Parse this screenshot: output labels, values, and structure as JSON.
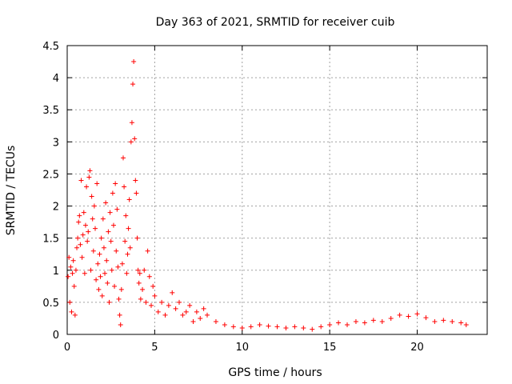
{
  "chart_data": {
    "type": "scatter",
    "title": "Day 363 of 2021, SRMTID for receiver cuib",
    "xlabel": "GPS time / hours",
    "ylabel": "SRMTID / TECUs",
    "xlim": [
      0,
      24
    ],
    "ylim": [
      0,
      4.5
    ],
    "xticks": [
      0,
      5,
      10,
      15,
      20
    ],
    "xtick_labels": [
      "0",
      "5",
      "10",
      "15",
      "20"
    ],
    "yticks": [
      0,
      0.5,
      1,
      1.5,
      2,
      2.5,
      3,
      3.5,
      4,
      4.5
    ],
    "ytick_labels": [
      "0",
      "0.5",
      "1",
      "1.5",
      "2",
      "2.5",
      "3",
      "3.5",
      "4",
      "4.5"
    ],
    "grid": true,
    "marker": "+",
    "color": "#ff0000",
    "series": [
      {
        "name": "SRMTID",
        "points": [
          [
            0.05,
            0.9
          ],
          [
            0.1,
            1.2
          ],
          [
            0.15,
            0.5
          ],
          [
            0.2,
            1.05
          ],
          [
            0.25,
            0.35
          ],
          [
            0.3,
            0.95
          ],
          [
            0.35,
            1.15
          ],
          [
            0.4,
            0.75
          ],
          [
            0.45,
            0.3
          ],
          [
            0.5,
            1.0
          ],
          [
            0.55,
            1.35
          ],
          [
            0.6,
            1.5
          ],
          [
            0.65,
            1.75
          ],
          [
            0.7,
            1.85
          ],
          [
            0.75,
            1.4
          ],
          [
            0.8,
            2.4
          ],
          [
            0.85,
            1.2
          ],
          [
            0.9,
            1.55
          ],
          [
            0.95,
            1.9
          ],
          [
            1.0,
            0.95
          ],
          [
            1.05,
            1.7
          ],
          [
            1.1,
            2.3
          ],
          [
            1.15,
            1.45
          ],
          [
            1.2,
            1.6
          ],
          [
            1.25,
            2.45
          ],
          [
            1.3,
            2.55
          ],
          [
            1.35,
            1.0
          ],
          [
            1.4,
            2.15
          ],
          [
            1.45,
            1.8
          ],
          [
            1.5,
            1.3
          ],
          [
            1.55,
            2.0
          ],
          [
            1.6,
            1.65
          ],
          [
            1.65,
            0.85
          ],
          [
            1.7,
            2.35
          ],
          [
            1.75,
            1.1
          ],
          [
            1.8,
            0.7
          ],
          [
            1.85,
            1.25
          ],
          [
            1.9,
            0.9
          ],
          [
            1.95,
            1.5
          ],
          [
            2.0,
            0.6
          ],
          [
            2.05,
            1.8
          ],
          [
            2.1,
            1.35
          ],
          [
            2.15,
            0.95
          ],
          [
            2.2,
            2.05
          ],
          [
            2.25,
            1.15
          ],
          [
            2.3,
            0.8
          ],
          [
            2.35,
            1.6
          ],
          [
            2.4,
            0.5
          ],
          [
            2.45,
            1.9
          ],
          [
            2.5,
            1.45
          ],
          [
            2.55,
            1.0
          ],
          [
            2.6,
            2.2
          ],
          [
            2.65,
            1.7
          ],
          [
            2.7,
            0.75
          ],
          [
            2.75,
            2.35
          ],
          [
            2.8,
            1.3
          ],
          [
            2.85,
            1.95
          ],
          [
            2.9,
            1.05
          ],
          [
            2.95,
            0.55
          ],
          [
            3.0,
            0.3
          ],
          [
            3.05,
            0.15
          ],
          [
            3.1,
            0.7
          ],
          [
            3.15,
            1.1
          ],
          [
            3.2,
            2.75
          ],
          [
            3.25,
            2.3
          ],
          [
            3.3,
            1.45
          ],
          [
            3.35,
            1.85
          ],
          [
            3.4,
            0.95
          ],
          [
            3.45,
            1.25
          ],
          [
            3.5,
            1.65
          ],
          [
            3.55,
            2.1
          ],
          [
            3.6,
            1.35
          ],
          [
            3.65,
            3.0
          ],
          [
            3.7,
            3.3
          ],
          [
            3.75,
            3.9
          ],
          [
            3.8,
            4.25
          ],
          [
            3.85,
            3.05
          ],
          [
            3.9,
            2.4
          ],
          [
            3.95,
            2.2
          ],
          [
            4.0,
            1.5
          ],
          [
            4.05,
            1.0
          ],
          [
            4.1,
            0.8
          ],
          [
            4.15,
            0.95
          ],
          [
            4.2,
            0.55
          ],
          [
            4.3,
            0.7
          ],
          [
            4.4,
            1.0
          ],
          [
            4.5,
            0.5
          ],
          [
            4.6,
            1.3
          ],
          [
            4.7,
            0.9
          ],
          [
            4.8,
            0.45
          ],
          [
            4.9,
            0.75
          ],
          [
            5.0,
            0.6
          ],
          [
            5.2,
            0.35
          ],
          [
            5.4,
            0.5
          ],
          [
            5.6,
            0.3
          ],
          [
            5.8,
            0.45
          ],
          [
            6.0,
            0.65
          ],
          [
            6.2,
            0.4
          ],
          [
            6.4,
            0.5
          ],
          [
            6.6,
            0.3
          ],
          [
            6.8,
            0.35
          ],
          [
            7.0,
            0.45
          ],
          [
            7.2,
            0.2
          ],
          [
            7.4,
            0.35
          ],
          [
            7.6,
            0.25
          ],
          [
            7.8,
            0.4
          ],
          [
            8.0,
            0.3
          ],
          [
            8.5,
            0.2
          ],
          [
            9.0,
            0.15
          ],
          [
            9.5,
            0.12
          ],
          [
            10.0,
            0.1
          ],
          [
            10.5,
            0.12
          ],
          [
            11.0,
            0.15
          ],
          [
            11.5,
            0.13
          ],
          [
            12.0,
            0.12
          ],
          [
            12.5,
            0.1
          ],
          [
            13.0,
            0.12
          ],
          [
            13.5,
            0.1
          ],
          [
            14.0,
            0.08
          ],
          [
            14.5,
            0.12
          ],
          [
            15.0,
            0.15
          ],
          [
            15.5,
            0.18
          ],
          [
            16.0,
            0.15
          ],
          [
            16.5,
            0.2
          ],
          [
            17.0,
            0.18
          ],
          [
            17.5,
            0.22
          ],
          [
            18.0,
            0.2
          ],
          [
            18.5,
            0.25
          ],
          [
            19.0,
            0.3
          ],
          [
            19.5,
            0.28
          ],
          [
            20.0,
            0.32
          ],
          [
            20.5,
            0.26
          ],
          [
            21.0,
            0.2
          ],
          [
            21.5,
            0.22
          ],
          [
            22.0,
            0.2
          ],
          [
            22.5,
            0.18
          ],
          [
            22.8,
            0.15
          ]
        ]
      }
    ]
  }
}
